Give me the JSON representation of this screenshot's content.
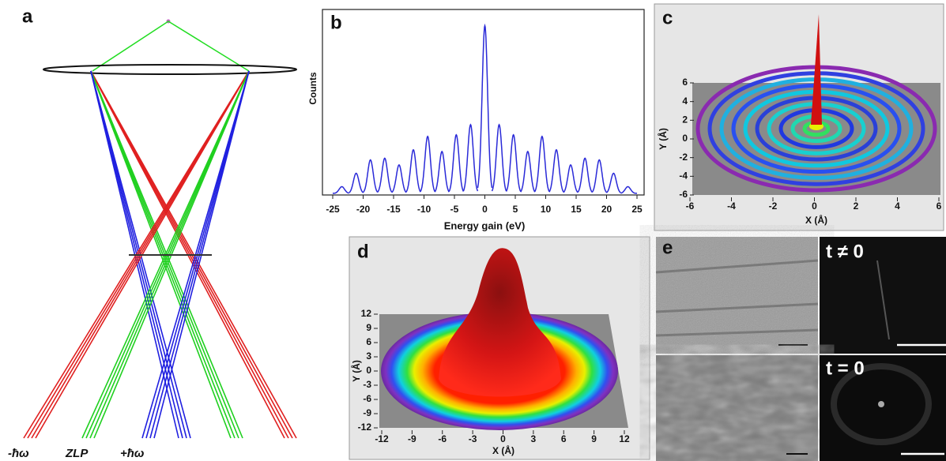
{
  "panel_a": {
    "label": "a",
    "beams": [
      "-ħω",
      "ZLP",
      "+ħω"
    ]
  },
  "chart_data": {
    "type": "line",
    "label": "b",
    "y_label": "Counts",
    "x_label": "Energy gain (eV)",
    "x": [
      -23.5,
      -21.15,
      -18.8,
      -16.45,
      -14.1,
      -11.75,
      -9.4,
      -7.05,
      -4.7,
      -2.35,
      0,
      2.35,
      4.7,
      7.05,
      9.4,
      11.75,
      14.1,
      16.45,
      18.8,
      21.15,
      23.5
    ],
    "values": [
      0.04,
      0.12,
      0.2,
      0.21,
      0.17,
      0.26,
      0.34,
      0.25,
      0.35,
      0.41,
      1.0,
      0.41,
      0.35,
      0.25,
      0.34,
      0.26,
      0.17,
      0.21,
      0.2,
      0.12,
      0.04
    ],
    "color": "#2a2ad8",
    "xlim": [
      -25,
      25
    ],
    "ylim": [
      0,
      1.05
    ],
    "xticks": [
      -25,
      -20,
      -15,
      -10,
      -5,
      0,
      5,
      10,
      15,
      20,
      25
    ]
  },
  "panel_c": {
    "label": "c",
    "y_label": "Y (Å)",
    "x_label": "X (Å)",
    "xlim": [
      -6,
      6
    ],
    "ylim": [
      -6,
      6
    ],
    "xticks": [
      -6,
      -4,
      -2,
      0,
      2,
      4,
      6
    ],
    "yticks": [
      -6,
      -4,
      -2,
      0,
      2,
      4,
      6
    ]
  },
  "panel_d": {
    "label": "d",
    "y_label": "Y (Å)",
    "x_label": "X (Å)",
    "xlim": [
      -12,
      12
    ],
    "ylim": [
      -12,
      12
    ],
    "xticks": [
      -12,
      -9,
      -6,
      -3,
      0,
      3,
      6,
      9,
      12
    ],
    "yticks": [
      -12,
      -9,
      -6,
      -3,
      0,
      3,
      6,
      9,
      12
    ]
  },
  "panel_e": {
    "label": "e",
    "top_right": "t ≠ 0",
    "bottom_right": "t = 0"
  }
}
